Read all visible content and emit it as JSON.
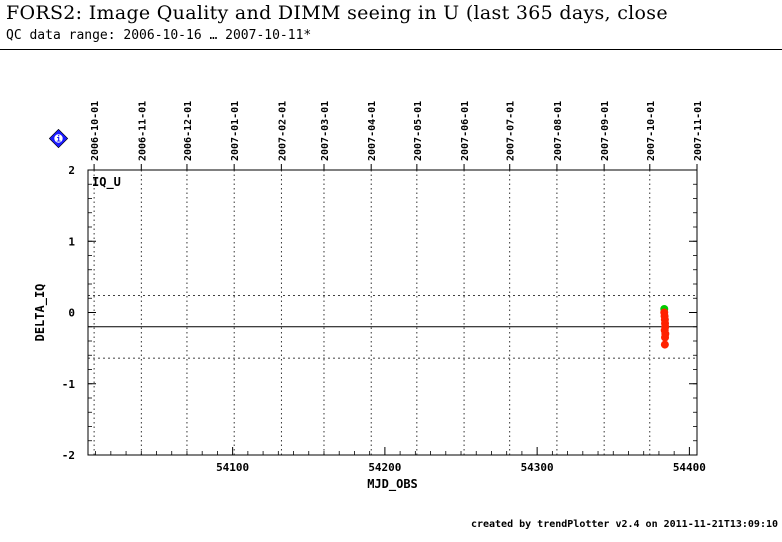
{
  "header": {
    "title": "FORS2: Image Quality and DIMM seeing in U (last 365 days, close",
    "subtitle": "QC data range: 2006-10-16 … 2007-10-11*"
  },
  "footer": {
    "credit": "created by trendPlotter v2.4 on 2011-11-21T13:09:10"
  },
  "info_badge": {
    "icon": "info-diamond-icon",
    "glyph": "i",
    "color": "#1a1aff"
  },
  "chart_data": {
    "type": "scatter",
    "panel_label": "IQ_U",
    "xlabel": "MJD_OBS",
    "ylabel": "DELTA_IQ",
    "xlim": [
      54005,
      54405
    ],
    "ylim": [
      -2,
      2
    ],
    "x_ticks": [
      54100,
      54200,
      54300,
      54400
    ],
    "y_ticks": [
      -2,
      -1,
      0,
      1,
      2
    ],
    "date_ticks": [
      {
        "label": "2006-10-01",
        "mjd": 54009
      },
      {
        "label": "2006-11-01",
        "mjd": 54040
      },
      {
        "label": "2006-12-01",
        "mjd": 54070
      },
      {
        "label": "2007-01-01",
        "mjd": 54101
      },
      {
        "label": "2007-02-01",
        "mjd": 54132
      },
      {
        "label": "2007-03-01",
        "mjd": 54160
      },
      {
        "label": "2007-04-01",
        "mjd": 54191
      },
      {
        "label": "2007-05-01",
        "mjd": 54221
      },
      {
        "label": "2007-06-01",
        "mjd": 54252
      },
      {
        "label": "2007-07-01",
        "mjd": 54282
      },
      {
        "label": "2007-08-01",
        "mjd": 54313
      },
      {
        "label": "2007-09-01",
        "mjd": 54344
      },
      {
        "label": "2007-10-01",
        "mjd": 54374
      },
      {
        "label": "2007-11-01",
        "mjd": 54405
      }
    ],
    "reference_lines": {
      "mean": -0.2,
      "upper": 0.24,
      "lower": -0.64
    },
    "grid": "vertical dotted at month boundaries",
    "series": [
      {
        "color": "#00cc00",
        "points": [
          {
            "x": 54383.5,
            "y": 0.05
          }
        ]
      },
      {
        "color": "#ff2200",
        "points": [
          {
            "x": 54383.5,
            "y": 0.0
          },
          {
            "x": 54383.7,
            "y": -0.05
          },
          {
            "x": 54383.9,
            "y": -0.1
          },
          {
            "x": 54384.0,
            "y": -0.15
          },
          {
            "x": 54384.1,
            "y": -0.2
          },
          {
            "x": 54383.8,
            "y": -0.25
          },
          {
            "x": 54384.2,
            "y": -0.3
          },
          {
            "x": 54384.0,
            "y": -0.35
          },
          {
            "x": 54383.9,
            "y": -0.45
          }
        ]
      }
    ]
  }
}
